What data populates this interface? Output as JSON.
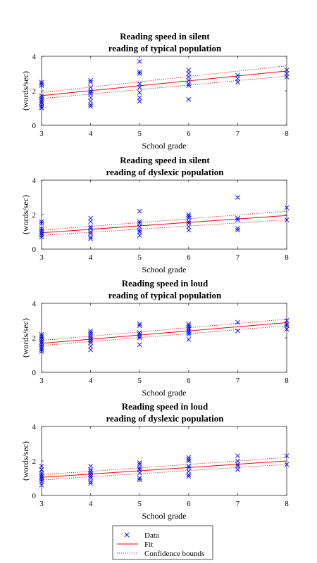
{
  "chart_data": [
    {
      "type": "scatter",
      "title": [
        "Reading speed in silent",
        "reading of typical population"
      ],
      "xlabel": "School grade",
      "ylabel": "(words/sec)",
      "xlim": [
        3,
        8
      ],
      "ylim": [
        0,
        4
      ],
      "xticks": [
        3,
        4,
        5,
        6,
        7,
        8
      ],
      "yticks": [
        0,
        2,
        4
      ],
      "series": [
        {
          "name": "Data",
          "points": [
            [
              3,
              1.0
            ],
            [
              3,
              1.1
            ],
            [
              3,
              1.2
            ],
            [
              3,
              1.3
            ],
            [
              3,
              1.4
            ],
            [
              3,
              1.5
            ],
            [
              3,
              1.6
            ],
            [
              3,
              1.7
            ],
            [
              3,
              2.3
            ],
            [
              3,
              2.4
            ],
            [
              3,
              2.5
            ],
            [
              4,
              1.1
            ],
            [
              4,
              1.2
            ],
            [
              4,
              1.4
            ],
            [
              4,
              1.6
            ],
            [
              4,
              1.8
            ],
            [
              4,
              1.9
            ],
            [
              4,
              2.0
            ],
            [
              4,
              2.2
            ],
            [
              4,
              2.5
            ],
            [
              4,
              2.6
            ],
            [
              5,
              1.4
            ],
            [
              5,
              1.6
            ],
            [
              5,
              1.9
            ],
            [
              5,
              2.2
            ],
            [
              5,
              2.4
            ],
            [
              5,
              3.0
            ],
            [
              5,
              3.1
            ],
            [
              5,
              3.7
            ],
            [
              6,
              1.5
            ],
            [
              6,
              2.3
            ],
            [
              6,
              2.4
            ],
            [
              6,
              2.6
            ],
            [
              6,
              2.8
            ],
            [
              6,
              3.0
            ],
            [
              6,
              3.2
            ],
            [
              7,
              2.5
            ],
            [
              7,
              2.7
            ],
            [
              7,
              2.9
            ],
            [
              8,
              2.8
            ],
            [
              8,
              3.0
            ],
            [
              8,
              3.2
            ]
          ]
        },
        {
          "name": "Fit",
          "line": [
            [
              3,
              1.72
            ],
            [
              8,
              3.15
            ]
          ]
        },
        {
          "name": "Confidence bounds",
          "upper": [
            [
              3,
              1.9
            ],
            [
              8,
              3.45
            ]
          ],
          "lower": [
            [
              3,
              1.55
            ],
            [
              8,
              2.85
            ]
          ]
        }
      ]
    },
    {
      "type": "scatter",
      "title": [
        "Reading speed in silent",
        "reading of dyslexic population"
      ],
      "xlabel": "School grade",
      "ylabel": "(words/sec)",
      "xlim": [
        3,
        8
      ],
      "ylim": [
        0,
        4
      ],
      "xticks": [
        3,
        4,
        5,
        6,
        7,
        8
      ],
      "yticks": [
        0,
        2,
        4
      ],
      "series": [
        {
          "name": "Data",
          "points": [
            [
              3,
              0.7
            ],
            [
              3,
              0.8
            ],
            [
              3,
              0.9
            ],
            [
              3,
              1.0
            ],
            [
              3,
              1.1
            ],
            [
              3,
              1.2
            ],
            [
              3,
              1.5
            ],
            [
              3,
              1.6
            ],
            [
              4,
              0.6
            ],
            [
              4,
              0.7
            ],
            [
              4,
              0.9
            ],
            [
              4,
              1.0
            ],
            [
              4,
              1.2
            ],
            [
              4,
              1.3
            ],
            [
              4,
              1.6
            ],
            [
              4,
              1.8
            ],
            [
              5,
              0.8
            ],
            [
              5,
              1.0
            ],
            [
              5,
              1.1
            ],
            [
              5,
              1.3
            ],
            [
              5,
              1.5
            ],
            [
              5,
              1.6
            ],
            [
              5,
              2.2
            ],
            [
              6,
              1.1
            ],
            [
              6,
              1.3
            ],
            [
              6,
              1.5
            ],
            [
              6,
              1.6
            ],
            [
              6,
              1.8
            ],
            [
              6,
              1.9
            ],
            [
              6,
              2.0
            ],
            [
              7,
              1.1
            ],
            [
              7,
              1.2
            ],
            [
              7,
              1.7
            ],
            [
              7,
              1.8
            ],
            [
              7,
              3.0
            ],
            [
              8,
              1.7
            ],
            [
              8,
              2.4
            ]
          ]
        },
        {
          "name": "Fit",
          "line": [
            [
              3,
              0.95
            ],
            [
              8,
              1.95
            ]
          ]
        },
        {
          "name": "Confidence bounds",
          "upper": [
            [
              3,
              1.1
            ],
            [
              8,
              2.2
            ]
          ],
          "lower": [
            [
              3,
              0.8
            ],
            [
              8,
              1.7
            ]
          ]
        }
      ]
    },
    {
      "type": "scatter",
      "title": [
        "Reading speed in loud",
        "reading of typical population"
      ],
      "xlabel": "School grade",
      "ylabel": "(words/sec)",
      "xlim": [
        3,
        8
      ],
      "ylim": [
        0,
        4
      ],
      "xticks": [
        3,
        4,
        5,
        6,
        7,
        8
      ],
      "yticks": [
        0,
        2,
        4
      ],
      "series": [
        {
          "name": "Data",
          "points": [
            [
              3,
              1.2
            ],
            [
              3,
              1.3
            ],
            [
              3,
              1.4
            ],
            [
              3,
              1.5
            ],
            [
              3,
              1.6
            ],
            [
              3,
              1.7
            ],
            [
              3,
              1.8
            ],
            [
              3,
              1.9
            ],
            [
              3,
              2.0
            ],
            [
              3,
              2.1
            ],
            [
              3,
              2.2
            ],
            [
              4,
              1.3
            ],
            [
              4,
              1.5
            ],
            [
              4,
              1.7
            ],
            [
              4,
              1.8
            ],
            [
              4,
              1.9
            ],
            [
              4,
              2.0
            ],
            [
              4,
              2.1
            ],
            [
              4,
              2.2
            ],
            [
              4,
              2.3
            ],
            [
              4,
              2.4
            ],
            [
              5,
              1.6
            ],
            [
              5,
              2.0
            ],
            [
              5,
              2.1
            ],
            [
              5,
              2.2
            ],
            [
              5,
              2.3
            ],
            [
              5,
              2.7
            ],
            [
              5,
              2.8
            ],
            [
              6,
              1.9
            ],
            [
              6,
              2.2
            ],
            [
              6,
              2.3
            ],
            [
              6,
              2.4
            ],
            [
              6,
              2.5
            ],
            [
              6,
              2.6
            ],
            [
              6,
              2.7
            ],
            [
              6,
              2.8
            ],
            [
              7,
              2.4
            ],
            [
              7,
              2.9
            ],
            [
              8,
              2.5
            ],
            [
              8,
              2.7
            ],
            [
              8,
              2.8
            ],
            [
              8,
              3.0
            ]
          ]
        },
        {
          "name": "Fit",
          "line": [
            [
              3,
              1.68
            ],
            [
              8,
              2.88
            ]
          ]
        },
        {
          "name": "Confidence bounds",
          "upper": [
            [
              3,
              1.85
            ],
            [
              8,
              3.08
            ]
          ],
          "lower": [
            [
              3,
              1.55
            ],
            [
              8,
              2.7
            ]
          ]
        }
      ]
    },
    {
      "type": "scatter",
      "title": [
        "Reading speed in loud",
        "reading of dyslexic population"
      ],
      "xlabel": "School grade",
      "ylabel": "(words/sec)",
      "xlim": [
        3,
        8
      ],
      "ylim": [
        0,
        4
      ],
      "xticks": [
        3,
        4,
        5,
        6,
        7,
        8
      ],
      "yticks": [
        0,
        2,
        4
      ],
      "series": [
        {
          "name": "Data",
          "points": [
            [
              3,
              0.6
            ],
            [
              3,
              0.8
            ],
            [
              3,
              0.9
            ],
            [
              3,
              1.0
            ],
            [
              3,
              1.1
            ],
            [
              3,
              1.2
            ],
            [
              3,
              1.3
            ],
            [
              3,
              1.5
            ],
            [
              3,
              1.7
            ],
            [
              4,
              0.7
            ],
            [
              4,
              0.8
            ],
            [
              4,
              1.0
            ],
            [
              4,
              1.1
            ],
            [
              4,
              1.2
            ],
            [
              4,
              1.3
            ],
            [
              4,
              1.4
            ],
            [
              4,
              1.5
            ],
            [
              4,
              1.7
            ],
            [
              5,
              0.9
            ],
            [
              5,
              1.0
            ],
            [
              5,
              1.3
            ],
            [
              5,
              1.5
            ],
            [
              5,
              1.6
            ],
            [
              5,
              1.8
            ],
            [
              5,
              1.9
            ],
            [
              6,
              1.1
            ],
            [
              6,
              1.2
            ],
            [
              6,
              1.4
            ],
            [
              6,
              1.6
            ],
            [
              6,
              1.7
            ],
            [
              6,
              2.0
            ],
            [
              6,
              2.1
            ],
            [
              6,
              2.2
            ],
            [
              7,
              1.5
            ],
            [
              7,
              1.7
            ],
            [
              7,
              1.8
            ],
            [
              7,
              2.0
            ],
            [
              7,
              2.3
            ],
            [
              8,
              1.8
            ],
            [
              8,
              2.3
            ]
          ]
        },
        {
          "name": "Fit",
          "line": [
            [
              3,
              1.05
            ],
            [
              8,
              2.0
            ]
          ]
        },
        {
          "name": "Confidence bounds",
          "upper": [
            [
              3,
              1.2
            ],
            [
              8,
              2.2
            ]
          ],
          "lower": [
            [
              3,
              0.9
            ],
            [
              8,
              1.8
            ]
          ]
        }
      ]
    }
  ],
  "legend": {
    "position": "bottom-center",
    "items": [
      {
        "label": "Data",
        "marker": "x",
        "color": "#0000ff"
      },
      {
        "label": "Fit",
        "marker": "solid-line",
        "color": "#ff0000"
      },
      {
        "label": "Confidence bounds",
        "marker": "dotted-line",
        "color": "#a00000"
      }
    ]
  },
  "colors": {
    "data": "#0000ff",
    "fit": "#ff0000",
    "bounds": "#a00000",
    "axes": "#262626"
  }
}
